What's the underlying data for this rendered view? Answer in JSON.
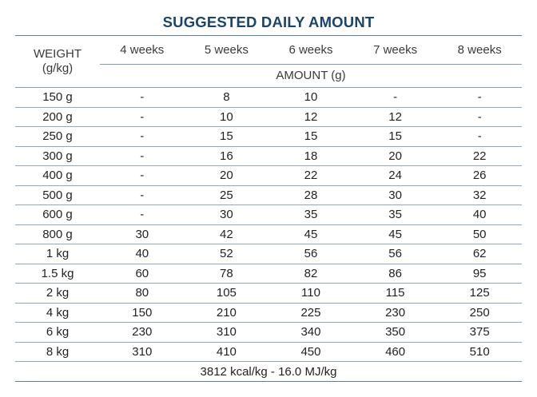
{
  "title": "SUGGESTED DAILY AMOUNT",
  "header": {
    "weight_line1": "WEIGHT",
    "weight_line2": "(g/kg)",
    "weeks": [
      "4 weeks",
      "5 weeks",
      "6 weeks",
      "7 weeks",
      "8 weeks"
    ],
    "amount_label": "AMOUNT (g)"
  },
  "rows": [
    {
      "weight": "150 g",
      "values": [
        "-",
        "8",
        "10",
        "-",
        "-"
      ]
    },
    {
      "weight": "200 g",
      "values": [
        "-",
        "10",
        "12",
        "12",
        "-"
      ]
    },
    {
      "weight": "250 g",
      "values": [
        "-",
        "15",
        "15",
        "15",
        "-"
      ]
    },
    {
      "weight": "300 g",
      "values": [
        "-",
        "16",
        "18",
        "20",
        "22"
      ]
    },
    {
      "weight": "400 g",
      "values": [
        "-",
        "20",
        "22",
        "24",
        "26"
      ]
    },
    {
      "weight": "500 g",
      "values": [
        "-",
        "25",
        "28",
        "30",
        "32"
      ]
    },
    {
      "weight": "600 g",
      "values": [
        "-",
        "30",
        "35",
        "35",
        "40"
      ]
    },
    {
      "weight": "800 g",
      "values": [
        "30",
        "42",
        "45",
        "45",
        "50"
      ]
    },
    {
      "weight": "1 kg",
      "values": [
        "40",
        "52",
        "56",
        "56",
        "62"
      ]
    },
    {
      "weight": "1.5 kg",
      "values": [
        "60",
        "78",
        "82",
        "86",
        "95"
      ]
    },
    {
      "weight": "2 kg",
      "values": [
        "80",
        "105",
        "110",
        "115",
        "125"
      ]
    },
    {
      "weight": "4 kg",
      "values": [
        "150",
        "210",
        "225",
        "230",
        "250"
      ]
    },
    {
      "weight": "6 kg",
      "values": [
        "230",
        "310",
        "340",
        "350",
        "375"
      ]
    },
    {
      "weight": "8 kg",
      "values": [
        "310",
        "410",
        "450",
        "460",
        "510"
      ]
    }
  ],
  "footer": "3812 kcal/kg - 16.0 MJ/kg",
  "colors": {
    "title": "#19456b",
    "rule": "#5b7fa3",
    "text": "#231f20"
  }
}
